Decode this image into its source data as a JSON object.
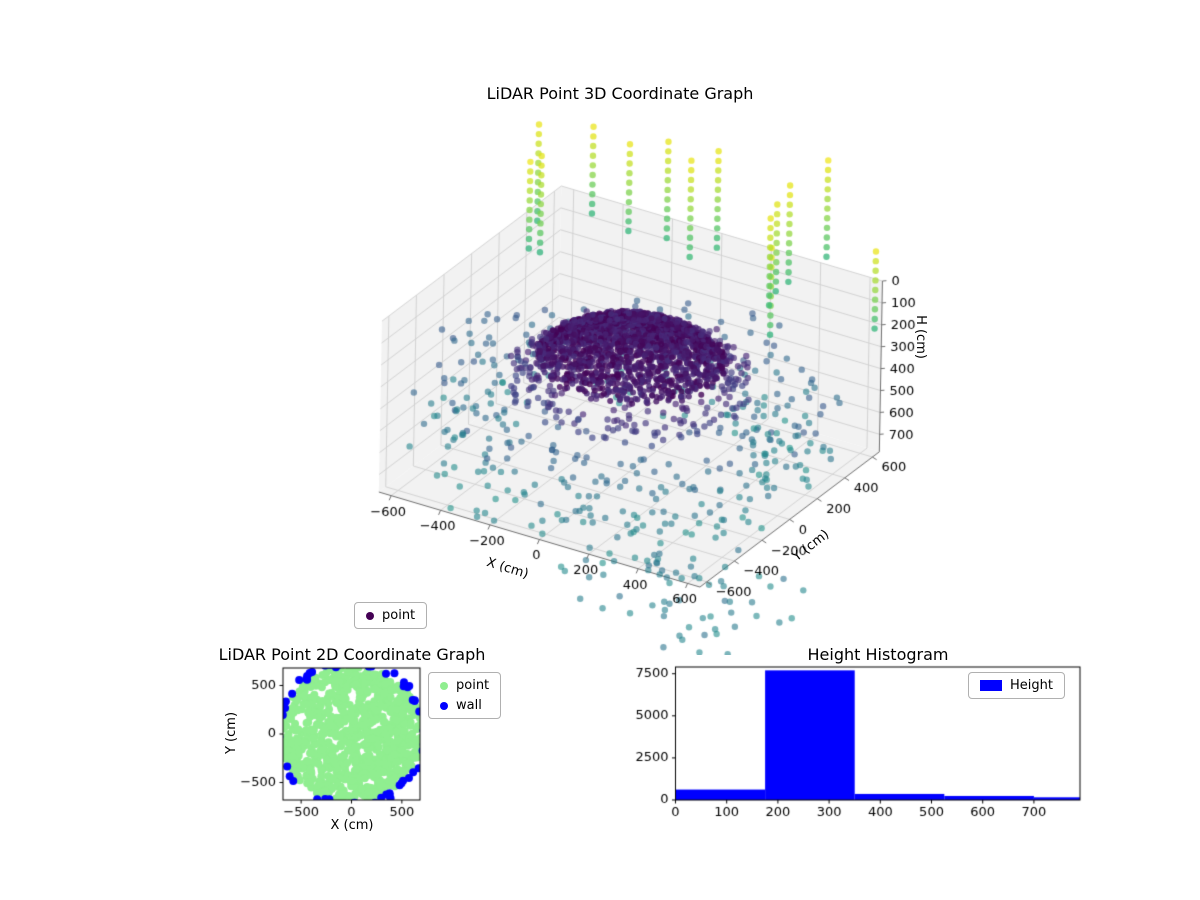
{
  "seed": 42,
  "viridis_stops": [
    "#440154",
    "#482878",
    "#3e4a89",
    "#31688e",
    "#26828e",
    "#1f9e89",
    "#35b779",
    "#6ece58",
    "#a5db36",
    "#dfe318",
    "#fde725"
  ],
  "chart_data": [
    {
      "type": "scatter3d",
      "title": "LiDAR Point 3D Coordinate Graph",
      "xlabel": "X (cm)",
      "ylabel": "Y (cm)",
      "zlabel": "H (cm)",
      "xlim": [
        -650,
        650
      ],
      "ylim": [
        -650,
        650
      ],
      "zlim": [
        0,
        780
      ],
      "zaxis_inverted": true,
      "xticks": [
        -600,
        -400,
        -200,
        0,
        200,
        400,
        600
      ],
      "yticks": [
        -600,
        -400,
        -200,
        0,
        200,
        400,
        600
      ],
      "zticks": [
        0,
        100,
        200,
        300,
        400,
        500,
        600,
        700
      ],
      "legend": [
        {
          "label": "point",
          "color": "#440154"
        }
      ],
      "colormap": "viridis",
      "pane_color": "#f2f2f2",
      "grid_color": "#cfcfcf",
      "spine_color": "#6e6e6e",
      "clusters": [
        {
          "name": "room-scatter",
          "kind": "shell",
          "count": 380,
          "r_range": [
            430,
            780
          ],
          "h_range": [
            340,
            780
          ],
          "v_range": [
            0.25,
            0.45
          ],
          "alpha": 0.6
        },
        {
          "name": "floor-spill",
          "kind": "box",
          "count": 70,
          "x_range": [
            150,
            950
          ],
          "y_range": [
            -950,
            -350
          ],
          "h_range": [
            700,
            920
          ],
          "v_range": [
            0.33,
            0.45
          ],
          "alpha": 0.6
        },
        {
          "name": "ring-fringe",
          "kind": "shell",
          "count": 260,
          "r_range": [
            330,
            430
          ],
          "h_range": [
            260,
            430
          ],
          "v_range": [
            0.08,
            0.2
          ],
          "alpha": 0.65
        },
        {
          "name": "ceiling-rings",
          "kind": "rings",
          "rings": 26,
          "r_min": 40,
          "r_max": 330,
          "h_base": 130,
          "h_curve": 0.0012,
          "h_noise": 36,
          "v_range": [
            0.0,
            0.12
          ],
          "alpha": 0.8
        },
        {
          "name": "upper-columns",
          "kind": "columns",
          "columns": 14,
          "r_range": [
            480,
            900
          ],
          "h_start": [
            30,
            90
          ],
          "h_end": [
            -300,
            -420
          ],
          "h_step": 44,
          "v_range": [
            0.58,
            0.95
          ],
          "alpha": 0.75
        }
      ]
    },
    {
      "type": "scatter",
      "title": "LiDAR Point 2D Coordinate Graph",
      "xlabel": "X (cm)",
      "ylabel": "Y (cm)",
      "xlim": [
        -680,
        680
      ],
      "ylim": [
        -680,
        680
      ],
      "xticks": [
        -500,
        0,
        500
      ],
      "yticks": [
        -500,
        0,
        500
      ],
      "series": [
        {
          "name": "point",
          "color": "#90ee90",
          "count": 850,
          "disk_radius": 700
        },
        {
          "name": "wall",
          "color": "#0000ff",
          "count": 70,
          "ring_radius": [
            700,
            770
          ]
        }
      ]
    },
    {
      "type": "bar",
      "title": "Height Histogram",
      "series_label": "Height",
      "color": "#0000ff",
      "bin_edges": [
        0,
        175,
        350,
        525,
        700,
        790
      ],
      "counts": [
        620,
        7700,
        360,
        240,
        160
      ],
      "xlim": [
        0,
        790
      ],
      "ylim": [
        0,
        7900
      ],
      "xticks": [
        0,
        100,
        200,
        300,
        400,
        500,
        600,
        700
      ],
      "yticks": [
        0,
        2500,
        5000,
        7500
      ]
    }
  ]
}
